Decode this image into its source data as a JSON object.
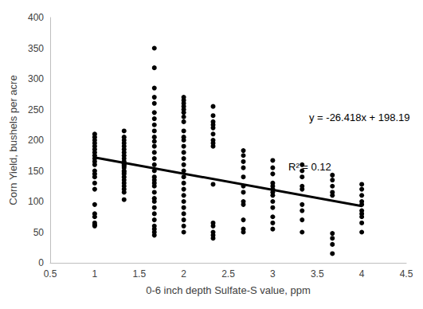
{
  "chart_data": {
    "type": "scatter",
    "x_label": "0-6 inch depth Sulfate-S value, ppm",
    "y_label": "Corn Yield, bushels per acre",
    "color": "#000000",
    "marker": "circle",
    "grid": false,
    "x": [
      1,
      1,
      1,
      1,
      1,
      1,
      1,
      1,
      1,
      1,
      1,
      1,
      1,
      1,
      1,
      1,
      1,
      1,
      1,
      1,
      1,
      1,
      1.33,
      1.33,
      1.33,
      1.33,
      1.33,
      1.33,
      1.33,
      1.33,
      1.33,
      1.33,
      1.33,
      1.33,
      1.33,
      1.33,
      1.33,
      1.33,
      1.33,
      1.33,
      1.33,
      1.33,
      1.33,
      1.33,
      1.33,
      1.33,
      1.67,
      1.67,
      1.67,
      1.67,
      1.67,
      1.67,
      1.67,
      1.67,
      1.67,
      1.67,
      1.67,
      1.67,
      1.67,
      1.67,
      1.67,
      1.67,
      1.67,
      1.67,
      1.67,
      1.67,
      1.67,
      1.67,
      1.67,
      1.67,
      1.67,
      1.67,
      1.67,
      1.67,
      1.67,
      1.67,
      2,
      2,
      2,
      2,
      2,
      2,
      2,
      2,
      2,
      2,
      2,
      2,
      2,
      2,
      2,
      2,
      2,
      2,
      2,
      2,
      2,
      2,
      2,
      2,
      2,
      2,
      2.33,
      2.33,
      2.33,
      2.33,
      2.33,
      2.33,
      2.33,
      2.33,
      2.33,
      2.33,
      2.33,
      2.33,
      2.33,
      2.33,
      2.33,
      2.67,
      2.67,
      2.67,
      2.67,
      2.67,
      2.67,
      2.67,
      2.67,
      2.67,
      2.67,
      2.67,
      2.67,
      3,
      3,
      3,
      3,
      3,
      3,
      3,
      3,
      3,
      3,
      3,
      3,
      3,
      3.33,
      3.33,
      3.33,
      3.33,
      3.33,
      3.33,
      3.33,
      3.33,
      3.33,
      3.67,
      3.67,
      3.67,
      3.67,
      3.67,
      3.67,
      3.67,
      3.67,
      3.67,
      4,
      4,
      4,
      4,
      4,
      4,
      4,
      4,
      4,
      4
    ],
    "values": [
      210,
      205,
      200,
      195,
      190,
      185,
      180,
      175,
      170,
      165,
      160,
      150,
      145,
      140,
      130,
      120,
      95,
      80,
      75,
      65,
      62,
      60,
      215,
      205,
      200,
      195,
      190,
      185,
      180,
      175,
      170,
      165,
      162,
      160,
      158,
      155,
      150,
      148,
      145,
      140,
      135,
      130,
      125,
      120,
      115,
      103,
      350,
      318,
      285,
      270,
      260,
      245,
      235,
      225,
      215,
      205,
      198,
      190,
      180,
      170,
      160,
      150,
      140,
      135,
      130,
      125,
      115,
      105,
      100,
      90,
      80,
      70,
      60,
      55,
      50,
      45,
      270,
      265,
      260,
      255,
      250,
      245,
      238,
      230,
      215,
      205,
      200,
      190,
      180,
      170,
      160,
      150,
      140,
      130,
      120,
      110,
      100,
      90,
      80,
      70,
      60,
      50,
      255,
      240,
      230,
      225,
      220,
      210,
      200,
      195,
      190,
      128,
      65,
      60,
      50,
      45,
      40,
      183,
      175,
      165,
      155,
      140,
      125,
      115,
      100,
      95,
      70,
      55,
      50,
      167,
      155,
      145,
      130,
      125,
      120,
      115,
      110,
      100,
      90,
      75,
      65,
      55,
      160,
      150,
      140,
      125,
      120,
      95,
      85,
      70,
      50,
      143,
      135,
      125,
      115,
      110,
      48,
      40,
      30,
      15,
      128,
      120,
      110,
      100,
      95,
      85,
      80,
      75,
      65,
      50
    ],
    "trendline": {
      "type": "line",
      "x": [
        1,
        4
      ],
      "values": [
        171.772,
        92.518
      ],
      "color": "#000000",
      "line_style": "solid"
    },
    "annotations": [
      "y = -26.418x + 198.19",
      "R² = 0.12"
    ],
    "xlim": [
      0.5,
      4.5
    ],
    "xticks": [
      0.5,
      1,
      1.5,
      2,
      2.5,
      3,
      3.5,
      4,
      4.5
    ],
    "ylim": [
      0,
      400
    ],
    "yticks": [
      0,
      50,
      100,
      150,
      200,
      250,
      300,
      350,
      400
    ]
  }
}
